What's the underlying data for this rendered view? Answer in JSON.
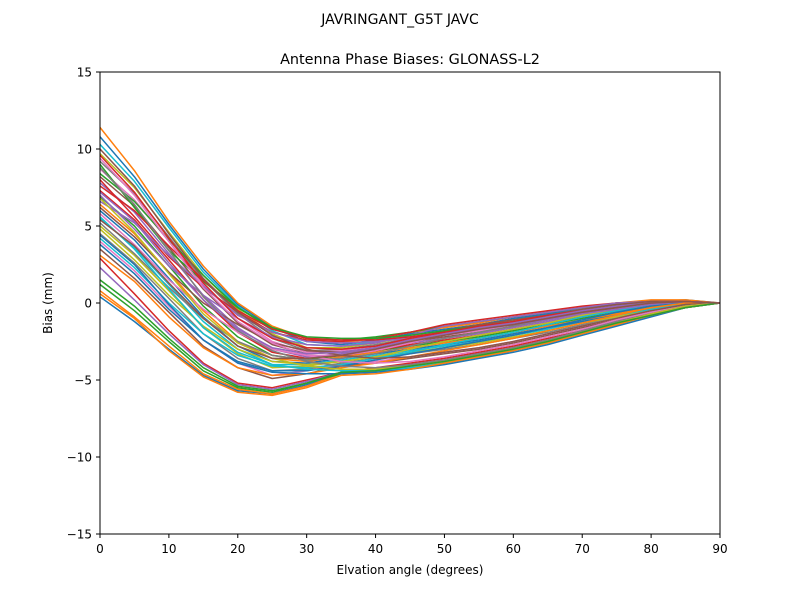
{
  "page": {
    "suptitle": "JAVRINGANT_G5T  JAVC"
  },
  "chart_data": {
    "type": "line",
    "title": "Antenna Phase Biases: GLONASS-L2",
    "xlabel": "Elvation angle (degrees)",
    "ylabel": "Bias (mm)",
    "xlim": [
      0,
      90
    ],
    "ylim": [
      -15,
      15
    ],
    "xticks": [
      0,
      10,
      20,
      30,
      40,
      50,
      60,
      70,
      80,
      90
    ],
    "yticks": [
      -15,
      -10,
      -5,
      0,
      5,
      10,
      15
    ],
    "ytick_labels": [
      "−15",
      "−10",
      "−5",
      "0",
      "5",
      "10",
      "15"
    ],
    "grid": false,
    "legend": "none",
    "x": [
      0,
      5,
      10,
      15,
      20,
      25,
      30,
      35,
      40,
      45,
      50,
      55,
      60,
      65,
      70,
      75,
      80,
      85,
      90
    ],
    "colors": [
      "#1f77b4",
      "#ff7f0e",
      "#2ca02c",
      "#d62728",
      "#9467bd",
      "#8c564b",
      "#e377c2",
      "#7f7f7f",
      "#bcbd22",
      "#17becf"
    ],
    "series": [
      {
        "values": [
          0.4,
          -1.2,
          -3.0,
          -4.7,
          -5.7,
          -5.9,
          -5.3,
          -4.6,
          -4.5,
          -4.2,
          -3.9,
          -3.5,
          -3.1,
          -2.6,
          -2.0,
          -1.4,
          -0.8,
          -0.3,
          0
        ]
      },
      {
        "values": [
          0.8,
          -0.9,
          -2.8,
          -4.6,
          -5.6,
          -5.9,
          -5.4,
          -4.6,
          -4.4,
          -4.1,
          -3.8,
          -3.4,
          -3.0,
          -2.5,
          -1.9,
          -1.3,
          -0.8,
          -0.3,
          0
        ]
      },
      {
        "values": [
          1.2,
          -0.5,
          -2.5,
          -4.4,
          -5.5,
          -5.8,
          -5.2,
          -4.6,
          -4.3,
          -4.0,
          -3.7,
          -3.3,
          -2.9,
          -2.4,
          -1.8,
          -1.2,
          -0.7,
          -0.2,
          0
        ]
      },
      {
        "values": [
          2.9,
          0.6,
          -1.8,
          -3.9,
          -5.2,
          -5.5,
          -5.0,
          -4.5,
          -4.2,
          -3.9,
          -3.6,
          -3.2,
          -2.8,
          -2.3,
          -1.8,
          -1.2,
          -0.7,
          -0.2,
          0
        ]
      },
      {
        "values": [
          2.3,
          0.2,
          -2.0,
          -4.0,
          -5.3,
          -5.6,
          -5.1,
          -4.5,
          -4.3,
          -4.0,
          -3.7,
          -3.3,
          -2.9,
          -2.4,
          -1.8,
          -1.2,
          -0.7,
          -0.2,
          0
        ]
      },
      {
        "values": [
          3.5,
          1.6,
          -0.6,
          -2.8,
          -4.2,
          -4.9,
          -4.6,
          -4.1,
          -3.9,
          -3.6,
          -3.3,
          -3.0,
          -2.6,
          -2.1,
          -1.6,
          -1.1,
          -0.6,
          -0.2,
          0
        ]
      },
      {
        "values": [
          4.0,
          2.1,
          -0.2,
          -2.4,
          -3.9,
          -4.7,
          -4.4,
          -4.0,
          -3.8,
          -3.5,
          -3.2,
          -2.9,
          -2.5,
          -2.0,
          -1.5,
          -1.0,
          -0.5,
          -0.1,
          0
        ]
      },
      {
        "values": [
          4.5,
          2.6,
          0.3,
          -2.0,
          -3.6,
          -4.4,
          -4.3,
          -3.9,
          -3.6,
          -3.3,
          -3.0,
          -2.7,
          -2.3,
          -1.9,
          -1.4,
          -0.9,
          -0.5,
          -0.1,
          0
        ]
      },
      {
        "values": [
          5.0,
          3.1,
          0.8,
          -1.6,
          -3.3,
          -4.2,
          -4.1,
          -3.8,
          -3.5,
          -3.2,
          -2.9,
          -2.6,
          -2.2,
          -1.8,
          -1.3,
          -0.9,
          -0.4,
          -0.1,
          0
        ]
      },
      {
        "values": [
          5.5,
          3.6,
          1.2,
          -1.2,
          -3.0,
          -4.0,
          -4.0,
          -3.7,
          -3.4,
          -3.1,
          -2.8,
          -2.5,
          -2.1,
          -1.7,
          -1.2,
          -0.8,
          -0.4,
          -0.1,
          0
        ]
      },
      {
        "values": [
          6.0,
          4.1,
          1.6,
          -0.9,
          -2.8,
          -3.8,
          -3.9,
          -3.6,
          -3.3,
          -3.0,
          -2.7,
          -2.4,
          -2.0,
          -1.6,
          -1.2,
          -0.7,
          -0.3,
          0.0,
          0
        ]
      },
      {
        "values": [
          6.4,
          4.5,
          2.0,
          -0.5,
          -2.5,
          -3.6,
          -3.8,
          -3.5,
          -3.2,
          -2.9,
          -2.6,
          -2.3,
          -1.9,
          -1.5,
          -1.1,
          -0.7,
          -0.3,
          0.0,
          0
        ]
      },
      {
        "values": [
          6.9,
          5.0,
          2.4,
          -0.2,
          -2.2,
          -3.4,
          -3.7,
          -3.4,
          -3.1,
          -2.8,
          -2.5,
          -2.2,
          -1.8,
          -1.4,
          -1.0,
          -0.6,
          -0.2,
          0.0,
          0
        ]
      },
      {
        "values": [
          7.3,
          5.4,
          2.8,
          0.2,
          -1.9,
          -3.2,
          -3.6,
          -3.4,
          -3.1,
          -2.7,
          -2.4,
          -2.1,
          -1.7,
          -1.3,
          -0.9,
          -0.5,
          -0.2,
          0.0,
          0
        ]
      },
      {
        "values": [
          7.8,
          5.9,
          3.2,
          0.5,
          -1.6,
          -3.0,
          -3.5,
          -3.3,
          -3.0,
          -2.6,
          -2.3,
          -2.0,
          -1.6,
          -1.2,
          -0.8,
          -0.5,
          -0.1,
          0.0,
          0
        ]
      },
      {
        "values": [
          8.2,
          6.3,
          3.6,
          0.9,
          -1.3,
          -2.7,
          -3.3,
          -3.2,
          -2.9,
          -2.5,
          -2.2,
          -1.9,
          -1.5,
          -1.1,
          -0.7,
          -0.4,
          -0.1,
          0.1,
          0
        ]
      },
      {
        "values": [
          8.7,
          6.7,
          4.0,
          1.2,
          -1.0,
          -2.5,
          -3.2,
          -3.1,
          -2.8,
          -2.4,
          -2.1,
          -1.8,
          -1.4,
          -1.0,
          -0.6,
          -0.3,
          0.0,
          0.1,
          0
        ]
      },
      {
        "values": [
          9.2,
          7.1,
          4.3,
          1.5,
          -0.7,
          -2.3,
          -3.1,
          -3.0,
          -2.7,
          -2.3,
          -2.0,
          -1.7,
          -1.3,
          -0.9,
          -0.6,
          -0.3,
          0.0,
          0.1,
          0
        ]
      },
      {
        "values": [
          9.7,
          7.5,
          4.6,
          1.8,
          -0.4,
          -2.0,
          -2.9,
          -2.9,
          -2.6,
          -2.2,
          -1.9,
          -1.6,
          -1.2,
          -0.8,
          -0.5,
          -0.2,
          0.1,
          0.1,
          0
        ]
      },
      {
        "values": [
          10.3,
          7.9,
          4.9,
          2.0,
          -0.2,
          -1.8,
          -2.7,
          -2.8,
          -2.5,
          -2.1,
          -1.8,
          -1.5,
          -1.1,
          -0.7,
          -0.4,
          -0.1,
          0.1,
          0.1,
          0
        ]
      },
      {
        "values": [
          10.8,
          8.2,
          5.1,
          2.2,
          -0.1,
          -1.6,
          -2.5,
          -2.7,
          -2.4,
          -2.0,
          -1.7,
          -1.4,
          -1.0,
          -0.7,
          -0.3,
          -0.1,
          0.1,
          0.2,
          0
        ]
      },
      {
        "values": [
          11.4,
          8.6,
          5.3,
          2.4,
          0.0,
          -1.5,
          -2.3,
          -2.6,
          -2.3,
          -1.9,
          -1.6,
          -1.3,
          -0.9,
          -0.6,
          -0.3,
          0.0,
          0.2,
          0.2,
          0
        ]
      },
      {
        "values": [
          9.0,
          6.2,
          3.4,
          1.4,
          -0.3,
          -1.7,
          -2.3,
          -2.4,
          -2.2,
          -1.9,
          -1.5,
          -1.2,
          -0.9,
          -0.6,
          -0.3,
          0.0,
          0.1,
          0.1,
          0
        ]
      },
      {
        "values": [
          8.0,
          5.6,
          3.0,
          1.0,
          -0.6,
          -1.9,
          -2.4,
          -2.5,
          -2.3,
          -1.9,
          -1.4,
          -1.1,
          -0.8,
          -0.5,
          -0.2,
          0.0,
          0.1,
          0.1,
          0
        ]
      },
      {
        "values": [
          7.0,
          4.8,
          2.4,
          0.5,
          -1.0,
          -2.2,
          -2.7,
          -2.8,
          -2.6,
          -2.1,
          -1.5,
          -1.2,
          -0.9,
          -0.6,
          -0.3,
          0.0,
          0.1,
          0.1,
          0
        ]
      },
      {
        "values": [
          6.2,
          4.3,
          2.0,
          0.0,
          -1.4,
          -2.6,
          -3.1,
          -3.2,
          -2.9,
          -2.4,
          -1.8,
          -1.4,
          -1.1,
          -0.8,
          -0.4,
          -0.1,
          0.1,
          0.1,
          0
        ]
      },
      {
        "values": [
          5.8,
          3.8,
          1.5,
          -0.4,
          -1.9,
          -3.0,
          -3.4,
          -3.4,
          -3.1,
          -2.6,
          -2.0,
          -1.7,
          -1.3,
          -0.9,
          -0.5,
          -0.2,
          0.0,
          0.1,
          0
        ]
      },
      {
        "values": [
          5.2,
          3.2,
          1.0,
          -1.0,
          -2.5,
          -3.4,
          -3.7,
          -3.6,
          -3.3,
          -2.8,
          -2.3,
          -1.9,
          -1.5,
          -1.1,
          -0.7,
          -0.3,
          0.0,
          0.1,
          0
        ]
      },
      {
        "values": [
          4.8,
          2.8,
          0.5,
          -1.5,
          -3.0,
          -3.8,
          -4.0,
          -3.8,
          -3.5,
          -3.0,
          -2.5,
          -2.1,
          -1.7,
          -1.3,
          -0.8,
          -0.4,
          -0.1,
          0.0,
          0
        ]
      },
      {
        "values": [
          4.2,
          2.3,
          0.0,
          -2.0,
          -3.4,
          -4.1,
          -4.2,
          -4.0,
          -3.6,
          -3.2,
          -2.7,
          -2.3,
          -1.9,
          -1.4,
          -0.9,
          -0.5,
          -0.1,
          0.0,
          0
        ]
      },
      {
        "values": [
          3.8,
          1.9,
          -0.4,
          -2.4,
          -3.8,
          -4.4,
          -4.4,
          -4.1,
          -3.7,
          -3.3,
          -2.9,
          -2.5,
          -2.1,
          -1.6,
          -1.1,
          -0.6,
          -0.2,
          0.0,
          0
        ]
      },
      {
        "values": [
          3.1,
          1.4,
          -0.9,
          -2.9,
          -4.2,
          -4.7,
          -4.6,
          -4.2,
          -3.9,
          -3.5,
          -3.1,
          -2.7,
          -2.3,
          -1.8,
          -1.3,
          -0.8,
          -0.3,
          0.0,
          0
        ]
      },
      {
        "values": [
          8.4,
          6.6,
          4.1,
          1.8,
          -0.3,
          -1.6,
          -2.2,
          -2.3,
          -2.3,
          -2.1,
          -1.8,
          -1.5,
          -1.2,
          -0.9,
          -0.5,
          -0.2,
          0.0,
          0.1,
          0
        ]
      },
      {
        "values": [
          7.6,
          6.0,
          3.7,
          1.5,
          -0.5,
          -1.7,
          -2.3,
          -2.4,
          -2.4,
          -2.2,
          -1.9,
          -1.6,
          -1.3,
          -1.0,
          -0.6,
          -0.3,
          0.0,
          0.1,
          0
        ]
      },
      {
        "values": [
          6.6,
          5.2,
          3.1,
          1.1,
          -0.8,
          -1.9,
          -2.5,
          -2.6,
          -2.5,
          -2.3,
          -2.0,
          -1.7,
          -1.4,
          -1.1,
          -0.7,
          -0.4,
          -0.1,
          0.1,
          0
        ]
      },
      {
        "values": [
          10.0,
          7.6,
          4.5,
          1.6,
          -0.6,
          -2.1,
          -3.0,
          -3.4,
          -3.6,
          -3.5,
          -3.2,
          -2.9,
          -2.5,
          -2.0,
          -1.5,
          -1.0,
          -0.5,
          -0.1,
          0
        ]
      },
      {
        "values": [
          9.4,
          7.0,
          4.0,
          1.0,
          -1.2,
          -2.6,
          -3.4,
          -3.8,
          -3.9,
          -3.8,
          -3.5,
          -3.1,
          -2.7,
          -2.2,
          -1.7,
          -1.1,
          -0.6,
          -0.2,
          0
        ]
      },
      {
        "values": [
          8.8,
          6.4,
          3.4,
          0.4,
          -1.8,
          -3.1,
          -3.8,
          -4.1,
          -4.2,
          -4.0,
          -3.7,
          -3.3,
          -2.9,
          -2.4,
          -1.8,
          -1.2,
          -0.7,
          -0.2,
          0
        ]
      },
      {
        "values": [
          6.8,
          4.6,
          1.9,
          -0.7,
          -2.6,
          -3.6,
          -4.1,
          -4.3,
          -4.3,
          -4.1,
          -3.8,
          -3.4,
          -3.0,
          -2.5,
          -1.9,
          -1.3,
          -0.7,
          -0.2,
          0
        ]
      },
      {
        "values": [
          5.6,
          3.5,
          0.9,
          -1.6,
          -3.2,
          -4.0,
          -4.3,
          -4.4,
          -4.4,
          -4.2,
          -3.9,
          -3.5,
          -3.1,
          -2.6,
          -2.0,
          -1.4,
          -0.8,
          -0.3,
          0
        ]
      },
      {
        "values": [
          4.4,
          2.5,
          -0.1,
          -2.4,
          -3.9,
          -4.5,
          -4.6,
          -4.6,
          -4.5,
          -4.3,
          -4.0,
          -3.6,
          -3.2,
          -2.7,
          -2.1,
          -1.5,
          -0.9,
          -0.3,
          0
        ]
      },
      {
        "values": [
          0.6,
          -1.0,
          -3.1,
          -4.8,
          -5.8,
          -6.0,
          -5.5,
          -4.7,
          -4.6,
          -4.3,
          -3.9,
          -3.5,
          -3.1,
          -2.6,
          -2.0,
          -1.4,
          -0.8,
          -0.3,
          0
        ]
      },
      {
        "values": [
          1.5,
          -0.2,
          -2.3,
          -4.2,
          -5.4,
          -5.7,
          -5.2,
          -4.5,
          -4.4,
          -4.1,
          -3.8,
          -3.4,
          -3.0,
          -2.5,
          -1.9,
          -1.3,
          -0.8,
          -0.3,
          0
        ]
      },
      {
        "values": [
          9.6,
          7.2,
          4.2,
          1.3,
          -1.0,
          -2.3,
          -2.9,
          -3.0,
          -2.8,
          -2.3,
          -1.9,
          -1.5,
          -1.2,
          -0.8,
          -0.5,
          -0.2,
          0.0,
          0.1,
          0
        ]
      },
      {
        "values": [
          7.2,
          5.3,
          2.6,
          0.2,
          -1.7,
          -2.9,
          -3.3,
          -3.2,
          -2.9,
          -2.4,
          -2.0,
          -1.6,
          -1.3,
          -0.9,
          -0.5,
          -0.2,
          0.0,
          0.1,
          0
        ]
      },
      {
        "values": [
          5.4,
          3.7,
          1.3,
          -1.0,
          -2.8,
          -3.6,
          -3.6,
          -3.4,
          -3.0,
          -2.5,
          -2.1,
          -1.7,
          -1.4,
          -1.0,
          -0.6,
          -0.3,
          0.0,
          0.1,
          0
        ]
      }
    ]
  }
}
